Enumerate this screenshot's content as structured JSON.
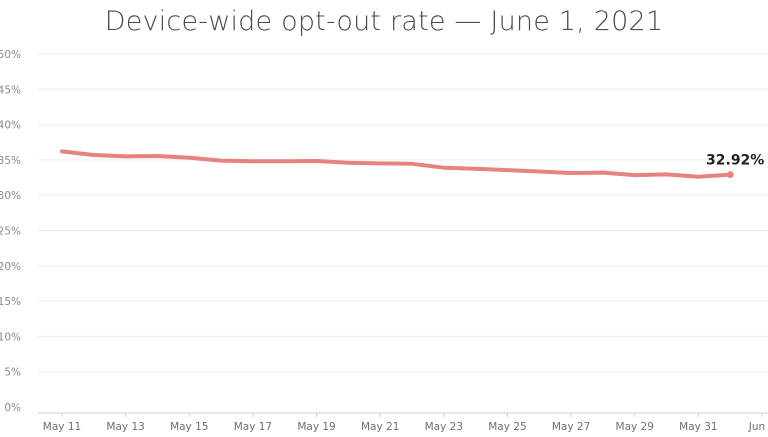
{
  "chart_data": {
    "type": "line",
    "title": "Device-wide opt-out rate — June 1, 2021",
    "xlabel": "",
    "ylabel": "",
    "x_ticks": [
      "May 11",
      "May 13",
      "May 15",
      "May 17",
      "May 19",
      "May 21",
      "May 23",
      "May 25",
      "May 27",
      "May 29",
      "May 31",
      "Jun 2"
    ],
    "y_ticks": [
      "0%",
      "5%",
      "10%",
      "15%",
      "20%",
      "25%",
      "30%",
      "35%",
      "40%",
      "45%",
      "50%"
    ],
    "ylim": [
      0,
      50
    ],
    "xlim": [
      "2021-05-11",
      "2021-06-02"
    ],
    "grid": "horizontal",
    "series": [
      {
        "color": "#e8827d",
        "points": [
          {
            "x": "2021-05-11",
            "y": 36.2
          },
          {
            "x": "2021-05-12",
            "y": 35.7
          },
          {
            "x": "2021-05-13",
            "y": 35.5
          },
          {
            "x": "2021-05-14",
            "y": 35.55
          },
          {
            "x": "2021-05-15",
            "y": 35.3
          },
          {
            "x": "2021-05-16",
            "y": 34.9
          },
          {
            "x": "2021-05-17",
            "y": 34.8
          },
          {
            "x": "2021-05-18",
            "y": 34.8
          },
          {
            "x": "2021-05-19",
            "y": 34.85
          },
          {
            "x": "2021-05-20",
            "y": 34.6
          },
          {
            "x": "2021-05-21",
            "y": 34.5
          },
          {
            "x": "2021-05-22",
            "y": 34.45
          },
          {
            "x": "2021-05-23",
            "y": 33.9
          },
          {
            "x": "2021-05-24",
            "y": 33.75
          },
          {
            "x": "2021-05-25",
            "y": 33.55
          },
          {
            "x": "2021-05-26",
            "y": 33.35
          },
          {
            "x": "2021-05-27",
            "y": 33.15
          },
          {
            "x": "2021-05-28",
            "y": 33.2
          },
          {
            "x": "2021-05-29",
            "y": 32.85
          },
          {
            "x": "2021-05-30",
            "y": 32.95
          },
          {
            "x": "2021-05-31",
            "y": 32.6
          },
          {
            "x": "2021-06-01",
            "y": 32.92
          }
        ]
      }
    ],
    "end_label": "32.92%",
    "legend": "none"
  }
}
